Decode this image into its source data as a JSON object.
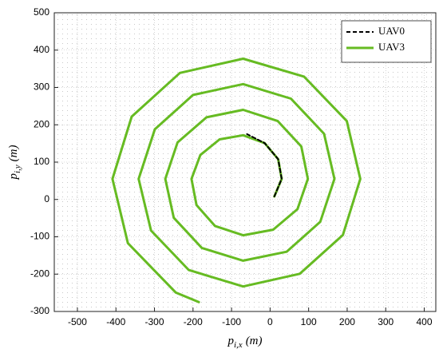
{
  "chart_data": {
    "type": "line",
    "xlabel": {
      "main": "p",
      "sub": "i,x",
      "unit": "(m)"
    },
    "ylabel": {
      "main": "p",
      "sub": "i,y",
      "unit": "(m)"
    },
    "xlim": [
      -560,
      430
    ],
    "ylim": [
      -300,
      500
    ],
    "xticks": [
      -500,
      -400,
      -300,
      -200,
      -100,
      0,
      100,
      200,
      300,
      400
    ],
    "yticks": [
      -300,
      -200,
      -100,
      0,
      100,
      200,
      300,
      400,
      500
    ],
    "grid": true,
    "legend": "top-right",
    "series": [
      {
        "name": "UAV0",
        "color": "#000000",
        "dashed": true,
        "x": [
          11,
          30,
          21,
          -14,
          -60
        ],
        "values": [
          8,
          55,
          108,
          151,
          175
        ]
      },
      {
        "name": "UAV3",
        "color": "#66bb22",
        "dashed": false,
        "x": [
          11,
          30,
          21,
          -14,
          -70,
          -131,
          -181,
          -204,
          -191,
          -143,
          -70,
          8,
          71,
          98,
          81,
          20,
          -70,
          -165,
          -240,
          -272,
          -250,
          -177,
          -70,
          43,
          130,
          167,
          140,
          54,
          -70,
          -200,
          -299,
          -341,
          -309,
          -211,
          -70,
          77,
          189,
          234,
          199,
          88,
          -70,
          -234,
          -359,
          -409,
          -369,
          -245,
          -185
        ],
        "values": [
          8,
          55,
          108,
          151,
          172,
          161,
          119,
          55,
          -15,
          -71,
          -96,
          -81,
          -26,
          55,
          142,
          210,
          240,
          220,
          153,
          55,
          -49,
          -130,
          -164,
          -140,
          -60,
          55,
          176,
          270,
          309,
          280,
          188,
          55,
          -83,
          -189,
          -233,
          -199,
          -95,
          55,
          210,
          329,
          377,
          339,
          222,
          55,
          -117,
          -249,
          -275
        ]
      }
    ]
  }
}
